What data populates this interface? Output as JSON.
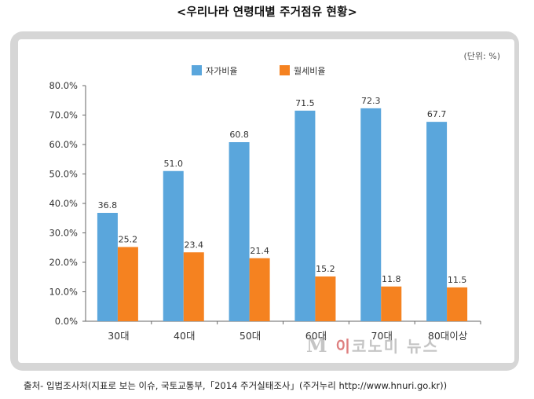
{
  "title": "<우리나라 연령대별 주거점유 현황>",
  "footer": "출처- 입법조사처(지표로 보는 이슈, 국토교통부,「2014 주거실태조사」(주거누리 http://www.hnuri.go.kr))",
  "watermark": {
    "m": "M",
    "i": "이",
    "rest": "코노미 뉴스"
  },
  "chart_data": {
    "type": "bar",
    "unit_note": "(단위: %)",
    "categories": [
      "30대",
      "40대",
      "50대",
      "60대",
      "70대",
      "80대이상"
    ],
    "series": [
      {
        "name": "자가비율",
        "color": "#5aa6dc",
        "values": [
          36.8,
          51.0,
          60.8,
          71.5,
          72.3,
          67.7
        ],
        "labels": [
          "36.8",
          "51.0",
          "60.8",
          "71.5",
          "72.3",
          "67.7"
        ]
      },
      {
        "name": "월세비율",
        "color": "#f58220",
        "values": [
          25.2,
          23.4,
          21.4,
          15.2,
          11.8,
          11.5
        ],
        "labels": [
          "25.2",
          "23.4",
          "21.4",
          "15.2",
          "11.8",
          "11.5"
        ]
      }
    ],
    "ylim": [
      0,
      80
    ],
    "yticks": [
      "0.0%",
      "10.0%",
      "20.0%",
      "30.0%",
      "40.0%",
      "50.0%",
      "60.0%",
      "70.0%",
      "80.0%"
    ],
    "legend": "top-center",
    "grid": false
  }
}
